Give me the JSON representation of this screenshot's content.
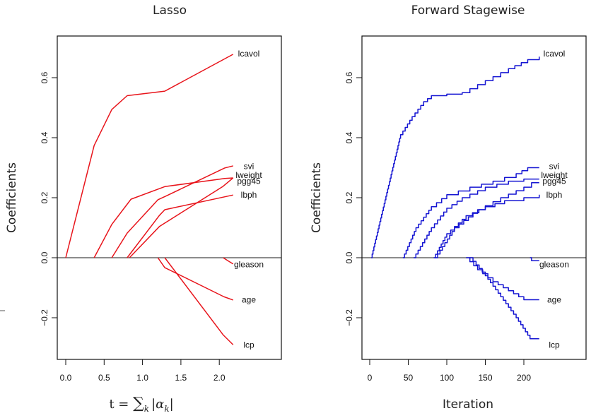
{
  "chart_data": [
    {
      "type": "line",
      "title": "Lasso",
      "xlabel": "t = ∑k |αk|",
      "xlabel_parts": {
        "lhs": "t = ",
        "sum": "∑",
        "sub": "k",
        "abs_open": "|",
        "alpha": "α",
        "alpha_sub": "k",
        "abs_close": "|"
      },
      "ylabel": "Coefficients",
      "xlim": [
        -0.1,
        2.8
      ],
      "ylim": [
        -0.34,
        0.74
      ],
      "xticks": [
        0.0,
        0.5,
        1.0,
        1.5,
        2.0
      ],
      "xtick_labels": [
        "0.0",
        "0.5",
        "1.0",
        "1.5",
        "2.0"
      ],
      "yticks": [
        -0.2,
        0.0,
        0.2,
        0.4,
        0.6
      ],
      "ytick_labels": [
        "−0.2",
        "0.0",
        "0.2",
        "0.4",
        "0.6"
      ],
      "zero_line": true,
      "color": "#e8141b",
      "series": [
        {
          "name": "lcavol",
          "label_y": 0.68,
          "points": [
            [
              0.0,
              0.0
            ],
            [
              0.37,
              0.374
            ],
            [
              0.6,
              0.494
            ],
            [
              0.8,
              0.54
            ],
            [
              1.29,
              0.555
            ],
            [
              2.18,
              0.678
            ]
          ]
        },
        {
          "name": "svi",
          "label_y": 0.305,
          "points": [
            [
              0.6,
              0.0
            ],
            [
              0.8,
              0.082
            ],
            [
              1.2,
              0.193
            ],
            [
              1.31,
              0.206
            ],
            [
              2.07,
              0.299
            ],
            [
              2.18,
              0.306
            ]
          ]
        },
        {
          "name": "lweight",
          "label_y": 0.275,
          "points": [
            [
              0.37,
              0.0
            ],
            [
              0.6,
              0.111
            ],
            [
              0.85,
              0.195
            ],
            [
              1.29,
              0.237
            ],
            [
              2.07,
              0.264
            ],
            [
              2.18,
              0.266
            ]
          ]
        },
        {
          "name": "pgg45",
          "label_y": 0.255,
          "points": [
            [
              0.83,
              0.0
            ],
            [
              1.22,
              0.104
            ],
            [
              2.05,
              0.238
            ],
            [
              2.18,
              0.266
            ]
          ]
        },
        {
          "name": "lbph",
          "label_y": 0.21,
          "points": [
            [
              0.8,
              0.0
            ],
            [
              1.22,
              0.141
            ],
            [
              1.29,
              0.16
            ],
            [
              2.18,
              0.209
            ]
          ]
        },
        {
          "name": "gleason",
          "label_y": -0.022,
          "points": [
            [
              2.05,
              0.0
            ],
            [
              2.18,
              -0.021
            ]
          ]
        },
        {
          "name": "age",
          "label_y": -0.14,
          "points": [
            [
              1.2,
              0.0
            ],
            [
              1.29,
              -0.033
            ],
            [
              2.06,
              -0.13
            ],
            [
              2.18,
              -0.141
            ]
          ]
        },
        {
          "name": "lcp",
          "label_y": -0.29,
          "points": [
            [
              1.29,
              0.0
            ],
            [
              2.05,
              -0.257
            ],
            [
              2.18,
              -0.29
            ]
          ]
        }
      ]
    },
    {
      "type": "line",
      "title": "Forward Stagewise",
      "xlabel": "Iteration",
      "ylabel": "Coefficients",
      "xlim": [
        -10,
        275
      ],
      "ylim": [
        -0.34,
        0.74
      ],
      "xticks": [
        0,
        50,
        100,
        150,
        200
      ],
      "xtick_labels": [
        "0",
        "50",
        "100",
        "150",
        "200"
      ],
      "yticks": [
        -0.2,
        0.0,
        0.2,
        0.4,
        0.6
      ],
      "ytick_labels": [
        "−0.2",
        "0.0",
        "0.2",
        "0.4",
        "0.6"
      ],
      "zero_line": true,
      "step": true,
      "color": "#1414d2",
      "series": [
        {
          "name": "lcavol",
          "label_y": 0.68,
          "points": [
            [
              2,
              0.0
            ],
            [
              40,
              0.41
            ],
            [
              55,
              0.47
            ],
            [
              70,
              0.52
            ],
            [
              80,
              0.54
            ],
            [
              100,
              0.545
            ],
            [
              120,
              0.55
            ],
            [
              150,
              0.59
            ],
            [
              180,
              0.63
            ],
            [
              205,
              0.66
            ],
            [
              220,
              0.67
            ]
          ]
        },
        {
          "name": "svi",
          "label_y": 0.305,
          "points": [
            [
              43,
              0.0
            ],
            [
              60,
              0.1
            ],
            [
              80,
              0.17
            ],
            [
              100,
              0.21
            ],
            [
              130,
              0.235
            ],
            [
              160,
              0.255
            ],
            [
              190,
              0.28
            ],
            [
              205,
              0.3
            ],
            [
              220,
              0.3
            ]
          ]
        },
        {
          "name": "lweight",
          "label_y": 0.275,
          "points": [
            [
              57,
              0.0
            ],
            [
              80,
              0.1
            ],
            [
              100,
              0.165
            ],
            [
              120,
              0.2
            ],
            [
              150,
              0.235
            ],
            [
              180,
              0.255
            ],
            [
              200,
              0.262
            ],
            [
              220,
              0.262
            ]
          ]
        },
        {
          "name": "pgg45",
          "label_y": 0.255,
          "points": [
            [
              85,
              0.0
            ],
            [
              110,
              0.1
            ],
            [
              140,
              0.16
            ],
            [
              170,
              0.2
            ],
            [
              200,
              0.235
            ],
            [
              210,
              0.25
            ],
            [
              220,
              0.25
            ]
          ]
        },
        {
          "name": "lbph",
          "label_y": 0.21,
          "points": [
            [
              83,
              0.0
            ],
            [
              100,
              0.08
            ],
            [
              125,
              0.14
            ],
            [
              150,
              0.17
            ],
            [
              175,
              0.19
            ],
            [
              200,
              0.2
            ],
            [
              220,
              0.21
            ]
          ]
        },
        {
          "name": "gleason",
          "label_y": -0.022,
          "points": [
            [
              208,
              0.0
            ],
            [
              210,
              -0.01
            ],
            [
              220,
              -0.01
            ]
          ]
        },
        {
          "name": "age",
          "label_y": -0.14,
          "points": [
            [
              125,
              0.0
            ],
            [
              140,
              -0.04
            ],
            [
              160,
              -0.08
            ],
            [
              180,
              -0.11
            ],
            [
              200,
              -0.14
            ],
            [
              220,
              -0.14
            ]
          ]
        },
        {
          "name": "lcp",
          "label_y": -0.29,
          "points": [
            [
              130,
              0.0
            ],
            [
              150,
              -0.06
            ],
            [
              170,
              -0.13
            ],
            [
              190,
              -0.2
            ],
            [
              208,
              -0.27
            ],
            [
              220,
              -0.27
            ]
          ]
        }
      ]
    }
  ]
}
